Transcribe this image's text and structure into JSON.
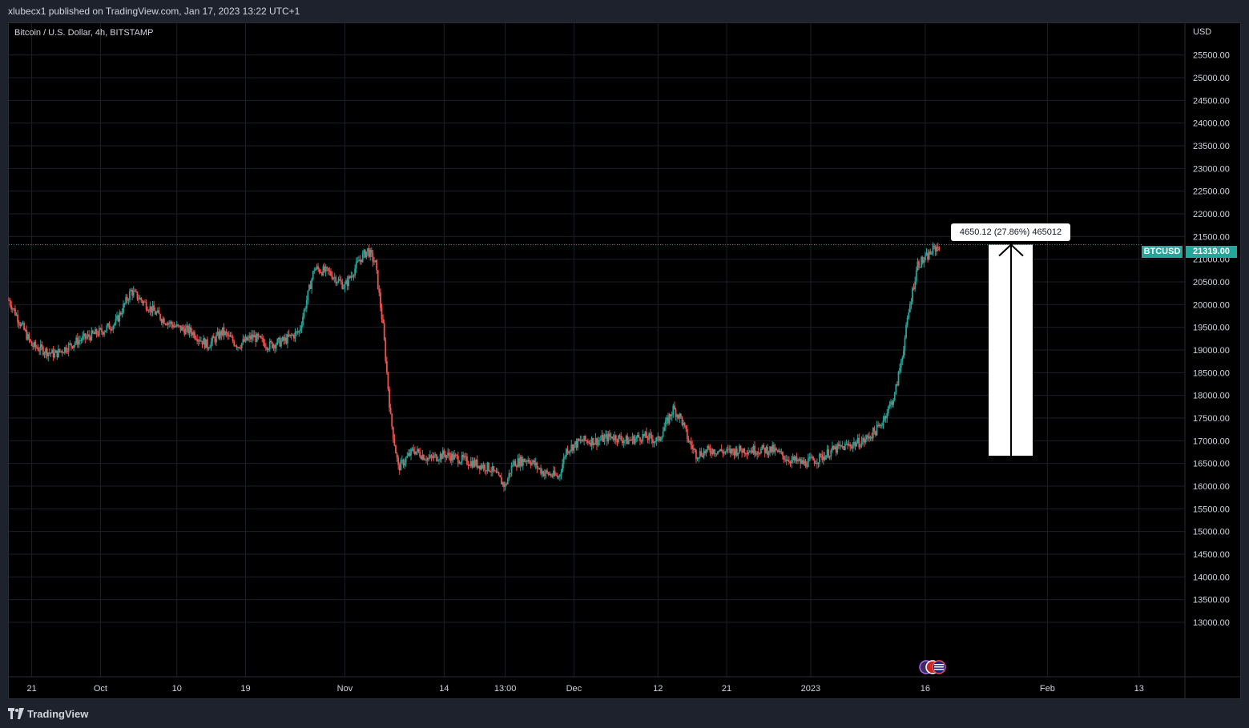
{
  "header": {
    "published_text": "xlubecx1 published on TradingView.com, Jan 17, 2023 13:22 UTC+1"
  },
  "symbol": {
    "description": "Bitcoin / U.S. Dollar, 4h, BITSTAMP",
    "ticker": "BTCUSD",
    "currency": "USD",
    "last_price_label": "21319.00"
  },
  "measure": {
    "label": "4650.12 (27.86%) 465012"
  },
  "footer": {
    "brand": "TradingView"
  },
  "colors": {
    "background": "#000000",
    "up": "#26a69a",
    "down": "#ef5350",
    "grid": "#1c1f26",
    "axis_text": "#d1d4dc",
    "price_line": "#26a69a",
    "measure": "#ffffff"
  },
  "icons": {
    "logo": "tradingview-logo-icon",
    "flags": "event-flags-icon"
  },
  "chart_data": {
    "type": "candlestick",
    "title": "Bitcoin / U.S. Dollar, 4h, BITSTAMP",
    "ylabel": "USD",
    "ylim": [
      11800,
      26200
    ],
    "y_ticks": [
      13000,
      13500,
      14000,
      14500,
      15000,
      15500,
      16000,
      16500,
      17000,
      17500,
      18000,
      18500,
      19000,
      19500,
      20000,
      20500,
      21000,
      21500,
      22000,
      22500,
      23000,
      23500,
      24000,
      24500,
      25000,
      25500
    ],
    "x_ticks": [
      {
        "label": "21",
        "day": 0
      },
      {
        "label": "Oct",
        "day": 9
      },
      {
        "label": "10",
        "day": 19
      },
      {
        "label": "19",
        "day": 28
      },
      {
        "label": "Nov",
        "day": 41
      },
      {
        "label": "14",
        "day": 54
      },
      {
        "label": "13:00",
        "day": 62
      },
      {
        "label": "Dec",
        "day": 71
      },
      {
        "label": "12",
        "day": 82
      },
      {
        "label": "21",
        "day": 91
      },
      {
        "label": "2023",
        "day": 102
      },
      {
        "label": "16",
        "day": 117
      },
      {
        "label": "Feb",
        "day": 133
      },
      {
        "label": "13",
        "day": 145
      }
    ],
    "x_range_days": [
      -3,
      151
    ],
    "last_price": 21319,
    "measure_range": {
      "from": 16670,
      "to": 21320,
      "delta": 4650.12,
      "percent": 27.86
    },
    "path": [
      [
        -3,
        20100
      ],
      [
        0,
        19100
      ],
      [
        3,
        18900
      ],
      [
        6,
        19200
      ],
      [
        9,
        19400
      ],
      [
        11,
        19600
      ],
      [
        13,
        20300
      ],
      [
        15,
        20000
      ],
      [
        17,
        19700
      ],
      [
        19,
        19500
      ],
      [
        21,
        19400
      ],
      [
        23,
        19100
      ],
      [
        25,
        19400
      ],
      [
        27,
        19100
      ],
      [
        29,
        19300
      ],
      [
        31,
        19100
      ],
      [
        33,
        19200
      ],
      [
        35,
        19400
      ],
      [
        37,
        20800
      ],
      [
        39,
        20700
      ],
      [
        41,
        20400
      ],
      [
        43,
        21000
      ],
      [
        44,
        21200
      ],
      [
        45,
        20900
      ],
      [
        46,
        19500
      ],
      [
        47,
        17500
      ],
      [
        48,
        16400
      ],
      [
        50,
        16800
      ],
      [
        52,
        16600
      ],
      [
        54,
        16700
      ],
      [
        56,
        16600
      ],
      [
        58,
        16500
      ],
      [
        60,
        16400
      ],
      [
        62,
        16000
      ],
      [
        63,
        16500
      ],
      [
        65,
        16600
      ],
      [
        67,
        16300
      ],
      [
        69,
        16200
      ],
      [
        70,
        16800
      ],
      [
        72,
        17000
      ],
      [
        74,
        17000
      ],
      [
        76,
        17100
      ],
      [
        78,
        17000
      ],
      [
        80,
        17100
      ],
      [
        82,
        17000
      ],
      [
        84,
        17700
      ],
      [
        85,
        17500
      ],
      [
        86,
        17000
      ],
      [
        87,
        16700
      ],
      [
        89,
        16800
      ],
      [
        91,
        16750
      ],
      [
        93,
        16800
      ],
      [
        95,
        16800
      ],
      [
        97,
        16800
      ],
      [
        99,
        16600
      ],
      [
        101,
        16500
      ],
      [
        103,
        16600
      ],
      [
        105,
        16800
      ],
      [
        107,
        16900
      ],
      [
        109,
        17000
      ],
      [
        111,
        17300
      ],
      [
        113,
        18000
      ],
      [
        114,
        18900
      ],
      [
        115,
        20000
      ],
      [
        116,
        20900
      ],
      [
        117,
        21000
      ],
      [
        118,
        21200
      ],
      [
        119,
        21319
      ]
    ]
  }
}
